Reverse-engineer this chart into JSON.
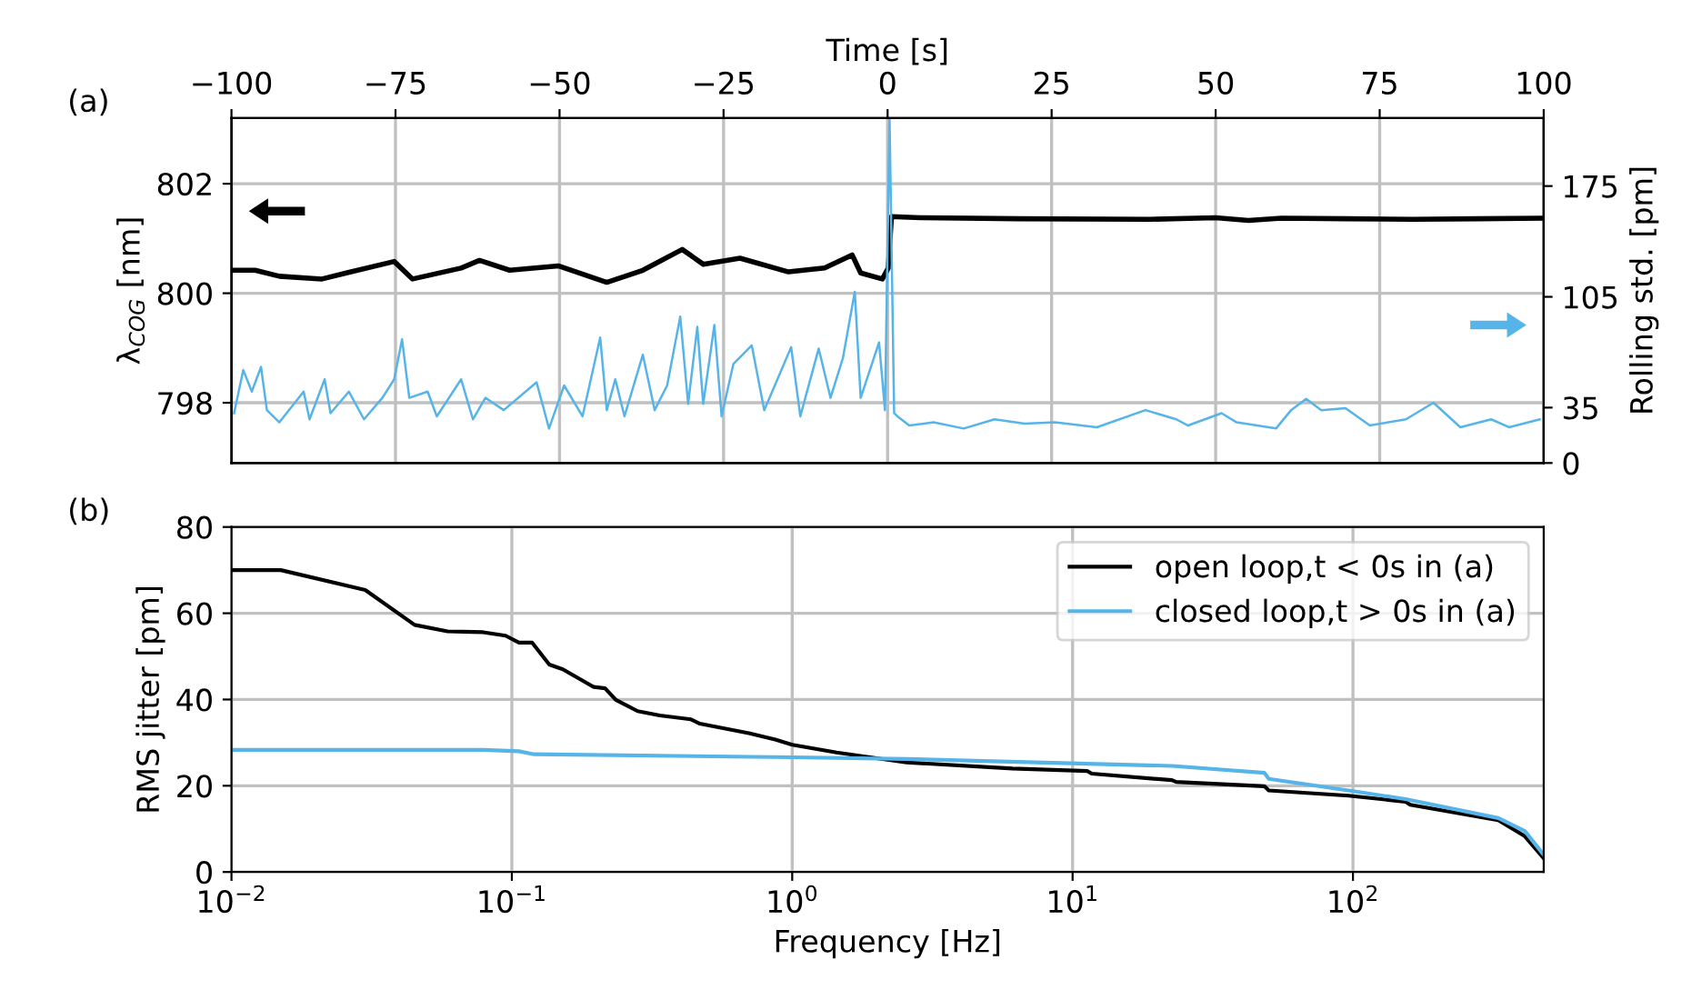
{
  "chart_data": [
    {
      "type": "line",
      "xlabel": "Time [s]",
      "ylabel": "λ$_{COG}$ [nm]",
      "y2label": "Rolling std. [pm]",
      "xlim": [
        -100,
        100
      ],
      "xticks": [
        {
          "value": -100,
          "label": "−100"
        },
        {
          "value": -75,
          "label": "−75"
        },
        {
          "value": -50,
          "label": "−50"
        },
        {
          "value": -25,
          "label": "−25"
        },
        0,
        25,
        50,
        75,
        100
      ],
      "ylim": [
        796.9,
        803.2
      ],
      "yticks": [
        798,
        800,
        802
      ],
      "y2lim": [
        0,
        218
      ],
      "y2ticks": [
        0,
        35,
        105,
        175
      ],
      "grid": true,
      "annotations": [
        "(a)"
      ],
      "series": [
        {
          "color": "#000000",
          "x": [
            -99.6,
            -96.4,
            -92.7,
            -86.2,
            -82.5,
            -75.2,
            -72.4,
            -65,
            -62.2,
            -57.6,
            -50.2,
            -42.8,
            -37.3,
            -31.3,
            -28.1,
            -22.5,
            -15.1,
            -9.6,
            -5.4,
            -4.1,
            -0.8,
            0.1,
            0.6,
            5,
            20,
            40,
            50,
            55,
            60,
            70,
            80,
            90,
            100
          ],
          "values": [
            800.42,
            800.42,
            800.31,
            800.26,
            800.37,
            800.58,
            800.26,
            800.46,
            800.6,
            800.42,
            800.5,
            800.2,
            800.42,
            800.8,
            800.53,
            800.64,
            800.39,
            800.46,
            800.7,
            800.37,
            800.26,
            800.46,
            801.4,
            801.38,
            801.36,
            801.35,
            801.38,
            801.33,
            801.37,
            801.36,
            801.35,
            801.36,
            801.37
          ]
        },
        {
          "color": "#56b4e9",
          "axis": "y2",
          "x": [
            -99.6,
            -98.2,
            -96.9,
            -95.5,
            -94.6,
            -92.7,
            -89,
            -88.1,
            -85.8,
            -84.9,
            -82.1,
            -79.8,
            -77,
            -75.2,
            -74,
            -72.9,
            -70.1,
            -68.7,
            -65,
            -63.2,
            -61.3,
            -58.5,
            -53.5,
            -51.6,
            -49.3,
            -46.5,
            -43.8,
            -42.8,
            -41.5,
            -40.1,
            -37.3,
            -35.5,
            -33.6,
            -31.6,
            -30.4,
            -29,
            -28.1,
            -26.4,
            -25.3,
            -23.5,
            -20.7,
            -18.8,
            -14.7,
            -13.3,
            -10.5,
            -8.7,
            -6.8,
            -5,
            -4.1,
            -1.3,
            -0.4,
            0.3,
            1.0,
            1.5,
            3.3,
            7,
            11.6,
            16.3,
            20.9,
            25.5,
            31.9,
            39.3,
            44,
            45.8,
            50.9,
            53.2,
            59.2,
            61.5,
            63.8,
            66.1,
            69.8,
            73.5,
            79,
            83.2,
            87.3,
            92,
            94.7,
            99.4
          ],
          "values": [
            31.5,
            58.7,
            45.1,
            60.7,
            33.4,
            25.7,
            45.1,
            27.6,
            52.9,
            31.5,
            45.1,
            27.6,
            41.2,
            52.9,
            78.2,
            41.2,
            45.1,
            29.5,
            52.9,
            27.6,
            41.2,
            33.4,
            51,
            21.8,
            49,
            29.5,
            79.3,
            33.4,
            52.9,
            29.5,
            68.4,
            33.4,
            49,
            92.5,
            37.3,
            86,
            37.3,
            87.2,
            29.5,
            62.6,
            74.3,
            33.4,
            73.2,
            29.5,
            72.3,
            41.2,
            66.5,
            108.2,
            41.2,
            76.2,
            33.4,
            218,
            31.5,
            29.5,
            23.7,
            25.7,
            21.8,
            27.6,
            24.9,
            25.7,
            22.6,
            33.4,
            27.6,
            23.7,
            31.5,
            25.7,
            21.8,
            33.4,
            40.5,
            33.4,
            34.6,
            23.7,
            27.6,
            38.1,
            22.6,
            27.6,
            22.6,
            27.6
          ]
        }
      ]
    },
    {
      "type": "line",
      "xlabel": "Frequency [Hz]",
      "ylabel": "RMS jitter [pm]",
      "log": "x",
      "xlim": [
        0.01,
        479
      ],
      "xticks": [
        {
          "value": 0.01,
          "label": "10$^{−2}$"
        },
        {
          "value": 0.1,
          "label": "10$^{−1}$"
        },
        {
          "value": 1,
          "label": "10$^{0}$"
        },
        {
          "value": 10,
          "label": "10$^{1}$"
        },
        {
          "value": 100,
          "label": "10$^{2}$"
        }
      ],
      "ylim": [
        0,
        80
      ],
      "yticks": [
        0,
        20,
        40,
        60,
        80
      ],
      "grid": true,
      "legend": "top right",
      "annotations": [
        "(b)"
      ],
      "series": [
        {
          "name": "open loop,t < 0s in (a)",
          "color": "#000000",
          "x": [
            0.01,
            0.015,
            0.03,
            0.045,
            0.059,
            0.079,
            0.095,
            0.106,
            0.118,
            0.136,
            0.152,
            0.196,
            0.215,
            0.235,
            0.281,
            0.337,
            0.435,
            0.468,
            0.7,
            0.87,
            1.0,
            1.44,
            2.56,
            6.1,
            11.3,
            11.7,
            22.6,
            23.4,
            48.3,
            50.1,
            96.4,
            154,
            160,
            330,
            410,
            479
          ],
          "values": [
            70,
            70,
            65.4,
            57.3,
            55.8,
            55.6,
            54.8,
            53.2,
            53.2,
            48.1,
            47.0,
            42.9,
            42.6,
            39.9,
            37.3,
            36.3,
            35.4,
            34.4,
            32.2,
            30.7,
            29.5,
            27.7,
            25.4,
            24.0,
            23.4,
            22.8,
            21.3,
            20.9,
            19.9,
            18.9,
            17.7,
            16.3,
            15.6,
            12.0,
            8.3,
            3.2
          ]
        },
        {
          "name": "closed loop,t > 0s in (a)",
          "color": "#56b4e9",
          "x": [
            0.01,
            0.079,
            0.106,
            0.12,
            1.0,
            2.56,
            22.6,
            48.3,
            50.1,
            96.4,
            154,
            330,
            410,
            479
          ],
          "values": [
            28.3,
            28.3,
            28.0,
            27.3,
            26.6,
            26.2,
            24.6,
            23.0,
            21.6,
            18.9,
            16.9,
            12.5,
            9.5,
            4.0
          ]
        }
      ]
    }
  ]
}
